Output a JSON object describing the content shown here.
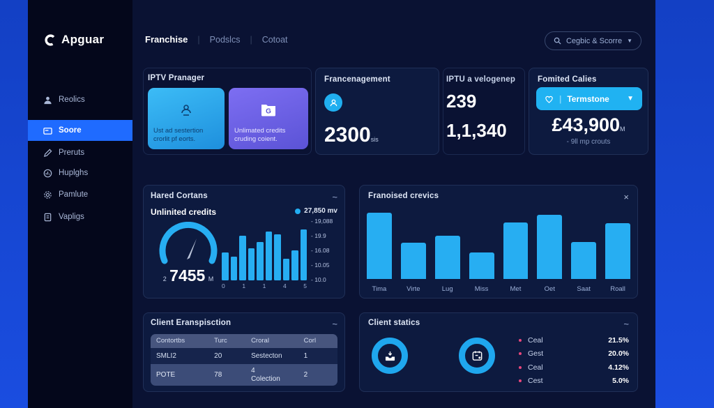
{
  "colors": {
    "accent_cyan": "#27aef2",
    "accent_blue": "#1f6bff",
    "accent_purple": "#6e64e6",
    "legend_pink": "#e8477c",
    "outer_blue": "#1747d0",
    "app_bg": "#0a1233",
    "card_bg": "#0d1a3f"
  },
  "brand": {
    "logo": "Apguar"
  },
  "nav": {
    "items": [
      "Franchise",
      "Podslcs",
      "Cotoat"
    ],
    "search_label": "Cegbic & Scorre"
  },
  "sidebar": {
    "items": [
      {
        "label": "Reolics",
        "icon": "user-icon"
      },
      {
        "label": "Soore",
        "icon": "card-icon",
        "active": true
      },
      {
        "label": "Preruts",
        "icon": "pencil-icon"
      },
      {
        "label": "Huplghs",
        "icon": "stats-icon"
      },
      {
        "label": "Pamlute",
        "icon": "gear-icon"
      },
      {
        "label": "Vapligs",
        "icon": "doc-icon"
      }
    ]
  },
  "stat_cards": {
    "iptv": {
      "title": "IPTV Pranager",
      "tile1": "Ust ad sestertion crorlit pf eorts.",
      "tile2": "Unlimated credits cruding coient."
    },
    "france": {
      "title": "Francenagement",
      "value": "2300",
      "suffix": "sis"
    },
    "iptu": {
      "title": "IPTU a velogenep",
      "value_top": "239",
      "value_bottom": "1,1,340"
    },
    "fomited": {
      "title": "Fomited Calies",
      "dropdown": "Termstone",
      "value": "£43,900",
      "suffix": "M",
      "note": "- 9ll mp crouts"
    }
  },
  "hared": {
    "title": "Hared Cortans",
    "subtitle": "Unlinited credits",
    "legend": "27,850 mv",
    "gauge_prefix": "2",
    "gauge_value": "7455",
    "gauge_suffix": "M",
    "toggle": "~"
  },
  "franoised": {
    "title": "Franoised crevics",
    "close": "×"
  },
  "client_table": {
    "title": "Client Eranspisction",
    "toggle": "~",
    "headers": [
      "Contortbs",
      "Turc",
      "Croral",
      "Corl"
    ],
    "rows": [
      [
        "SMLI2",
        "20",
        "Sestecton",
        "1"
      ],
      [
        "POTE",
        "78",
        "4\nColection",
        "2"
      ]
    ]
  },
  "client_statics": {
    "title": "Client statics",
    "toggle": "~",
    "legend": [
      {
        "label": "Ceal",
        "value": "21.5%"
      },
      {
        "label": "Gest",
        "value": "20.0%"
      },
      {
        "label": "Ceal",
        "value": "4.12%"
      },
      {
        "label": "Cest",
        "value": "5.0%"
      }
    ]
  },
  "chart_data": [
    {
      "type": "bar",
      "title": "Hared Cortans mini chart",
      "categories": [
        "0",
        "1",
        "1",
        "4",
        "5"
      ],
      "values": [
        14.3,
        13.7,
        16.9,
        15.0,
        15.9,
        17.6,
        17.1,
        13.3,
        14.6,
        17.9
      ],
      "yticks": [
        "19,088",
        "19.9",
        "16.08",
        "10.05",
        "10.0"
      ],
      "ylim": [
        10,
        19.5
      ],
      "xlabel": "",
      "ylabel": "",
      "legend_position": "top-right"
    },
    {
      "type": "bar",
      "title": "Franoised crevics",
      "categories": [
        "Tima",
        "Virte",
        "Lug",
        "Miss",
        "Met",
        "Oet",
        "Saat",
        "Roall"
      ],
      "values": [
        100,
        55,
        65,
        40,
        85,
        97,
        56,
        84
      ],
      "ylim": [
        0,
        105
      ],
      "xlabel": "",
      "ylabel": "",
      "grid": false
    }
  ]
}
